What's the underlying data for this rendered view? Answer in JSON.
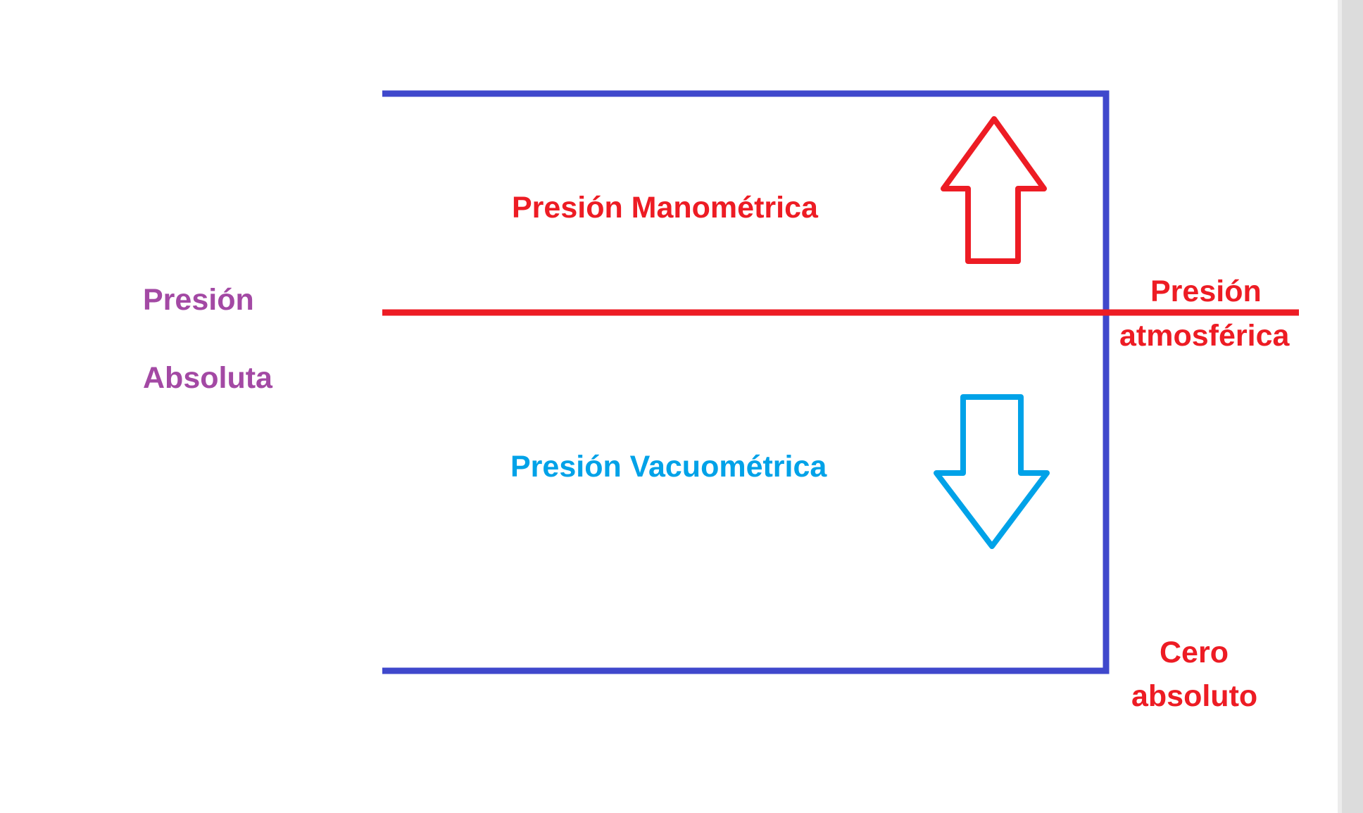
{
  "diagram": {
    "labels": {
      "gauge_pressure": "Presión Manométrica",
      "vacuum_pressure": "Presión Vacuométrica",
      "absolute_pressure_line1": "Presión",
      "absolute_pressure_line2": "Absoluta",
      "atmospheric_pressure_line1": "Presión",
      "atmospheric_pressure_line2": "atmosférica",
      "absolute_zero_line1": "Cero",
      "absolute_zero_line2": "absoluto"
    },
    "colors": {
      "frame": "#3f48cc",
      "atmospheric_line": "#ed1c24",
      "gauge": "#ed1c24",
      "vacuum": "#00a2e8",
      "absolute": "#a349a4",
      "right_edge_strip": "#dcdcdc"
    },
    "icons": {
      "up_arrow": "arrow-up-outline-icon",
      "down_arrow": "arrow-down-outline-icon"
    }
  }
}
